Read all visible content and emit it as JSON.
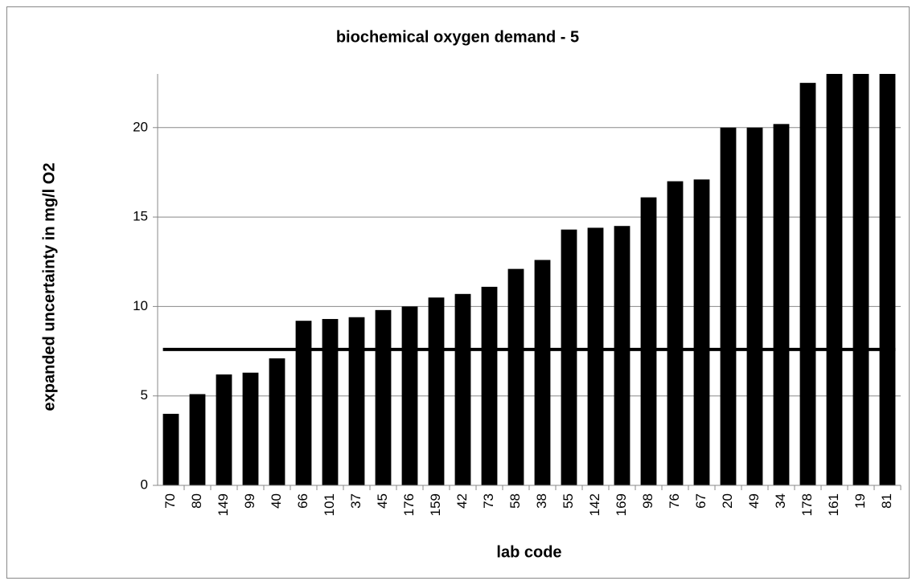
{
  "chart_data": {
    "type": "bar",
    "title": "biochemical oxygen demand - 5",
    "x_label": "lab code",
    "y_label": "expanded uncertainty in mg/l O2",
    "categories": [
      "70",
      "80",
      "149",
      "99",
      "40",
      "66",
      "101",
      "37",
      "45",
      "176",
      "159",
      "42",
      "73",
      "58",
      "38",
      "55",
      "142",
      "169",
      "98",
      "76",
      "67",
      "20",
      "49",
      "34",
      "178",
      "161",
      "19",
      "81"
    ],
    "values": [
      4.0,
      5.1,
      6.2,
      6.3,
      7.1,
      9.2,
      9.3,
      9.4,
      9.8,
      10.0,
      10.5,
      10.7,
      11.1,
      12.1,
      12.6,
      14.3,
      14.4,
      14.5,
      16.1,
      17.0,
      17.1,
      20.0,
      20.0,
      20.2,
      22.5,
      23,
      23,
      23
    ],
    "color": "#000000",
    "reference_line": 7.6,
    "ylim": [
      0,
      23
    ],
    "yticks": [
      0,
      5,
      10,
      15,
      20
    ],
    "grid": true
  }
}
